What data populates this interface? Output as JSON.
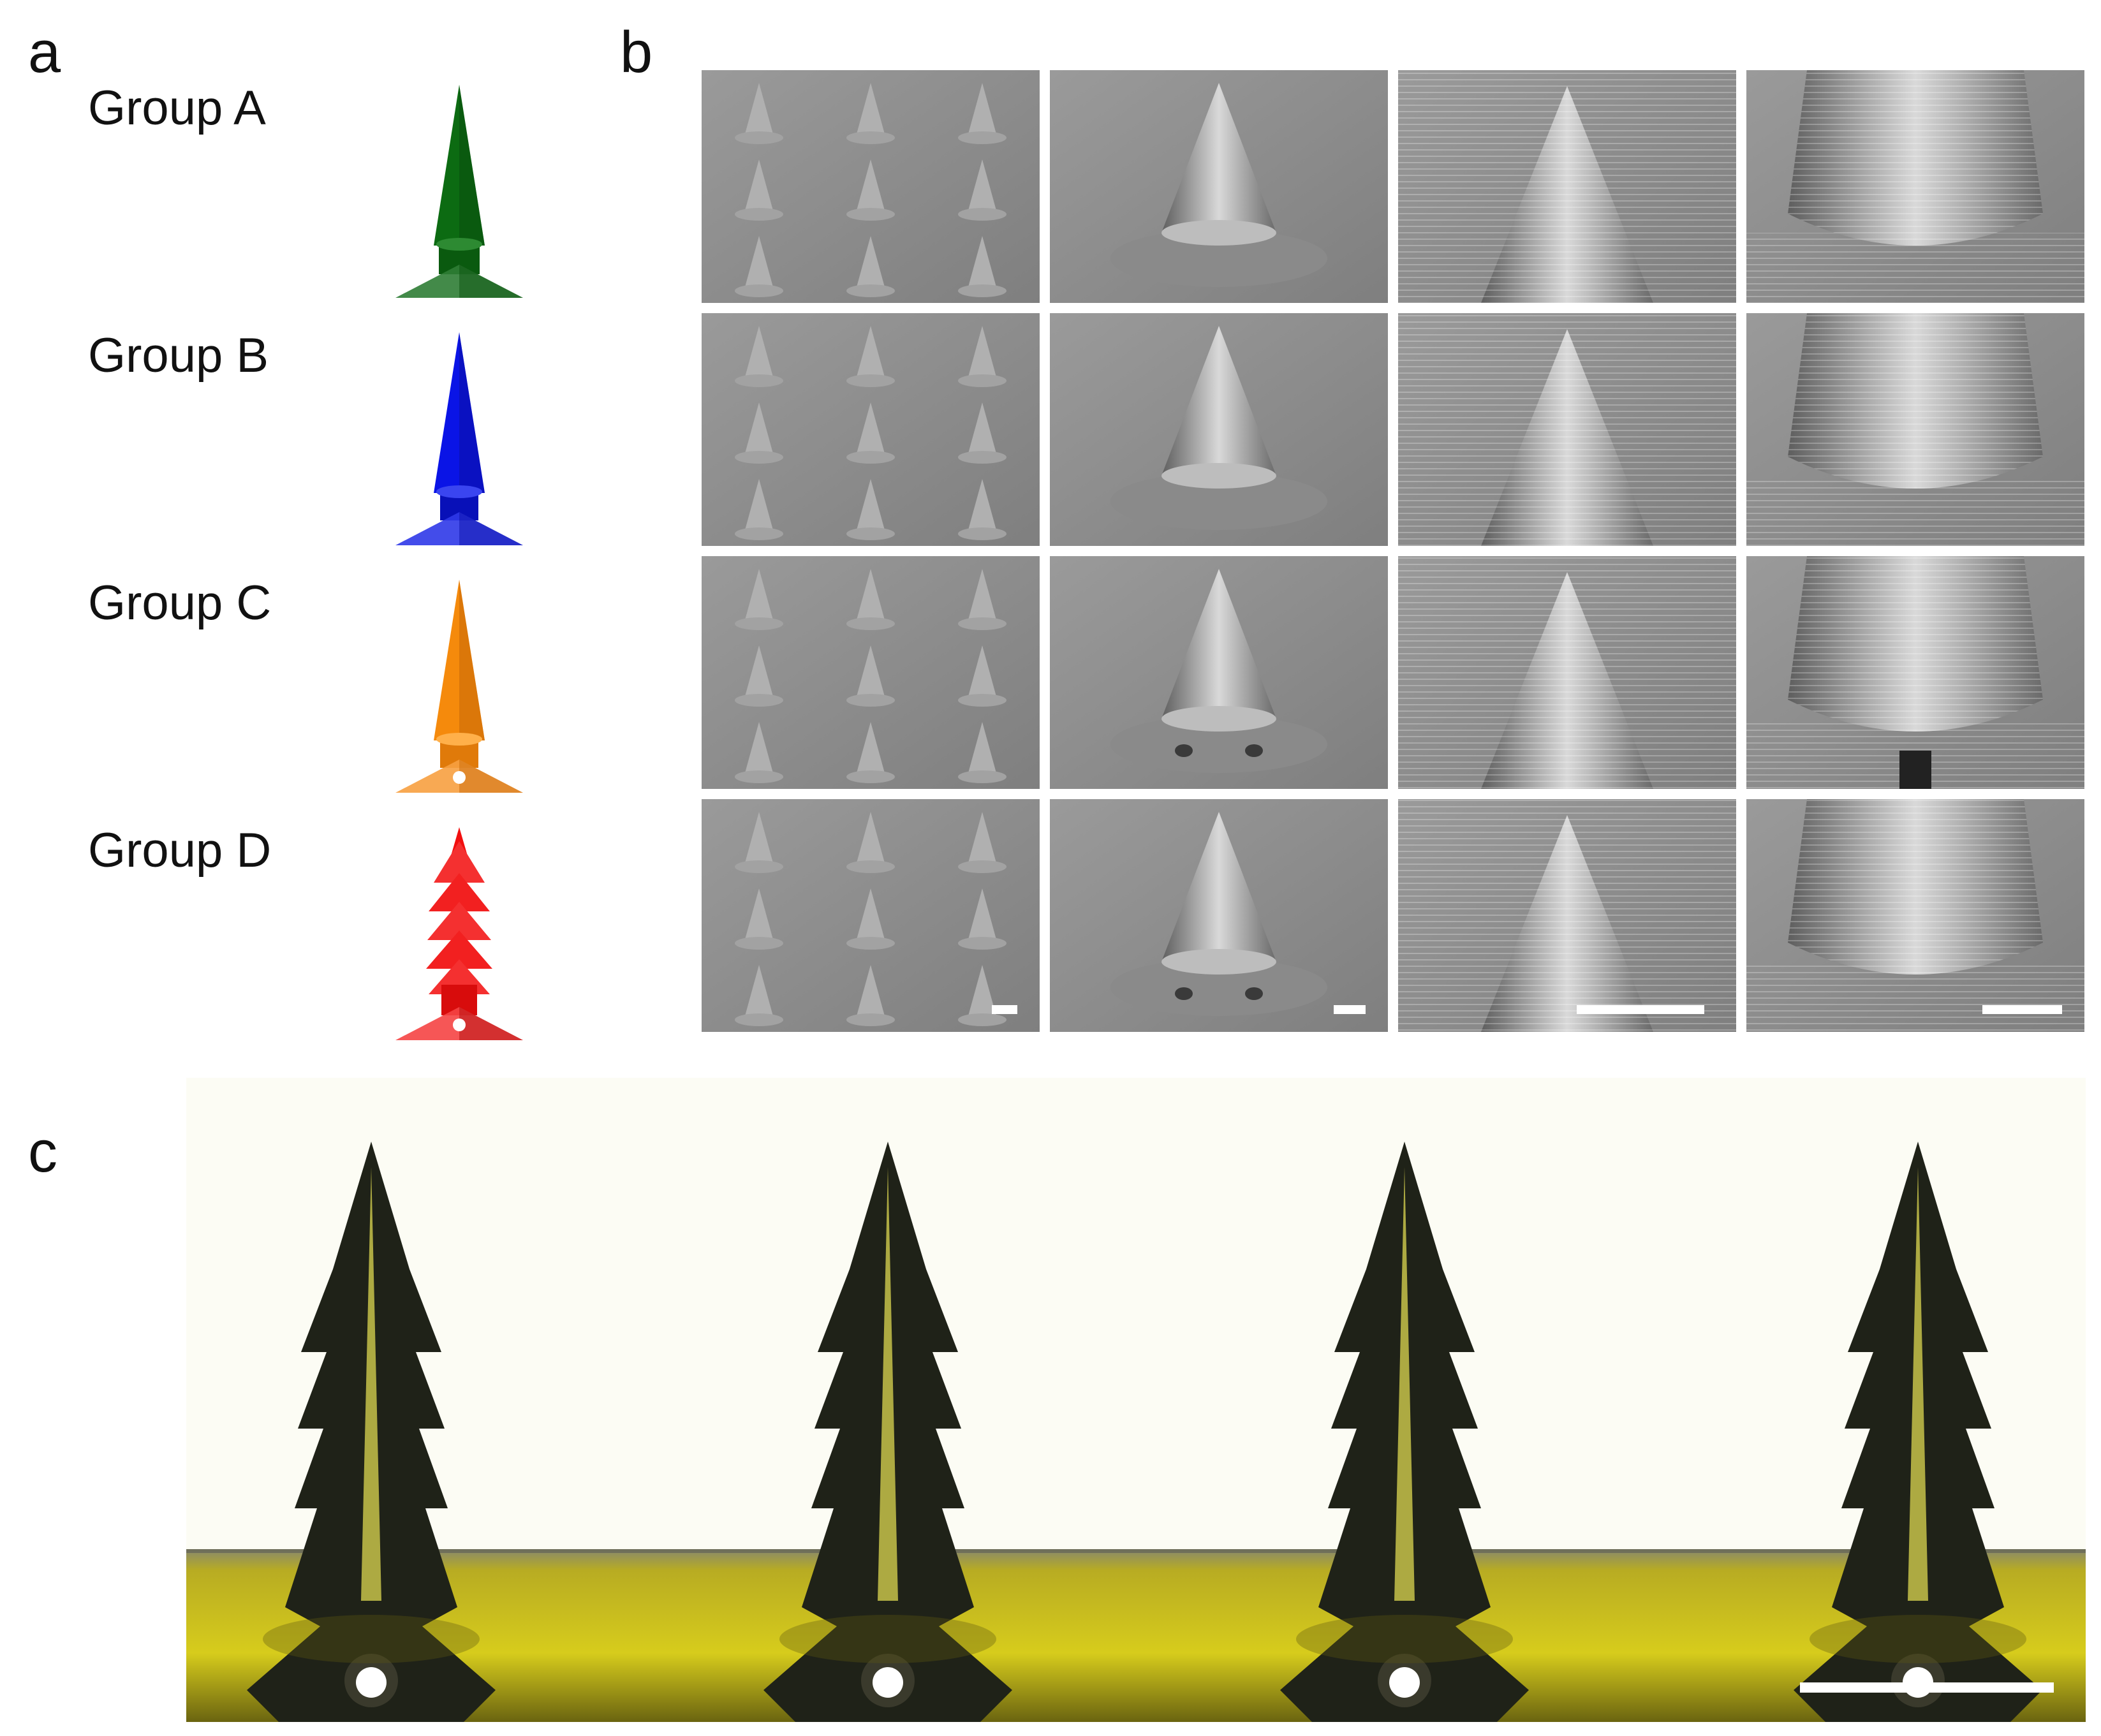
{
  "panels": {
    "a": {
      "letter": "a"
    },
    "b": {
      "letter": "b"
    },
    "c": {
      "letter": "c"
    }
  },
  "groups": [
    {
      "label": "Group A",
      "color": "#0c6b12"
    },
    {
      "label": "Group B",
      "color": "#0a14e6"
    },
    {
      "label": "Group C",
      "color": "#f58a0c"
    },
    {
      "label": "Group D",
      "color": "#f20f0f"
    }
  ],
  "sem_grid": {
    "rows": 4,
    "columns": 4,
    "tone": "#8d8d8d",
    "scale_bar_color": "#ffffff"
  },
  "photo": {
    "backdrop": "#fdfdf6",
    "substrate": "#c9bd18",
    "needle": "#1f2218",
    "core": "#c7c24a",
    "scale_bar_color": "#ffffff"
  }
}
